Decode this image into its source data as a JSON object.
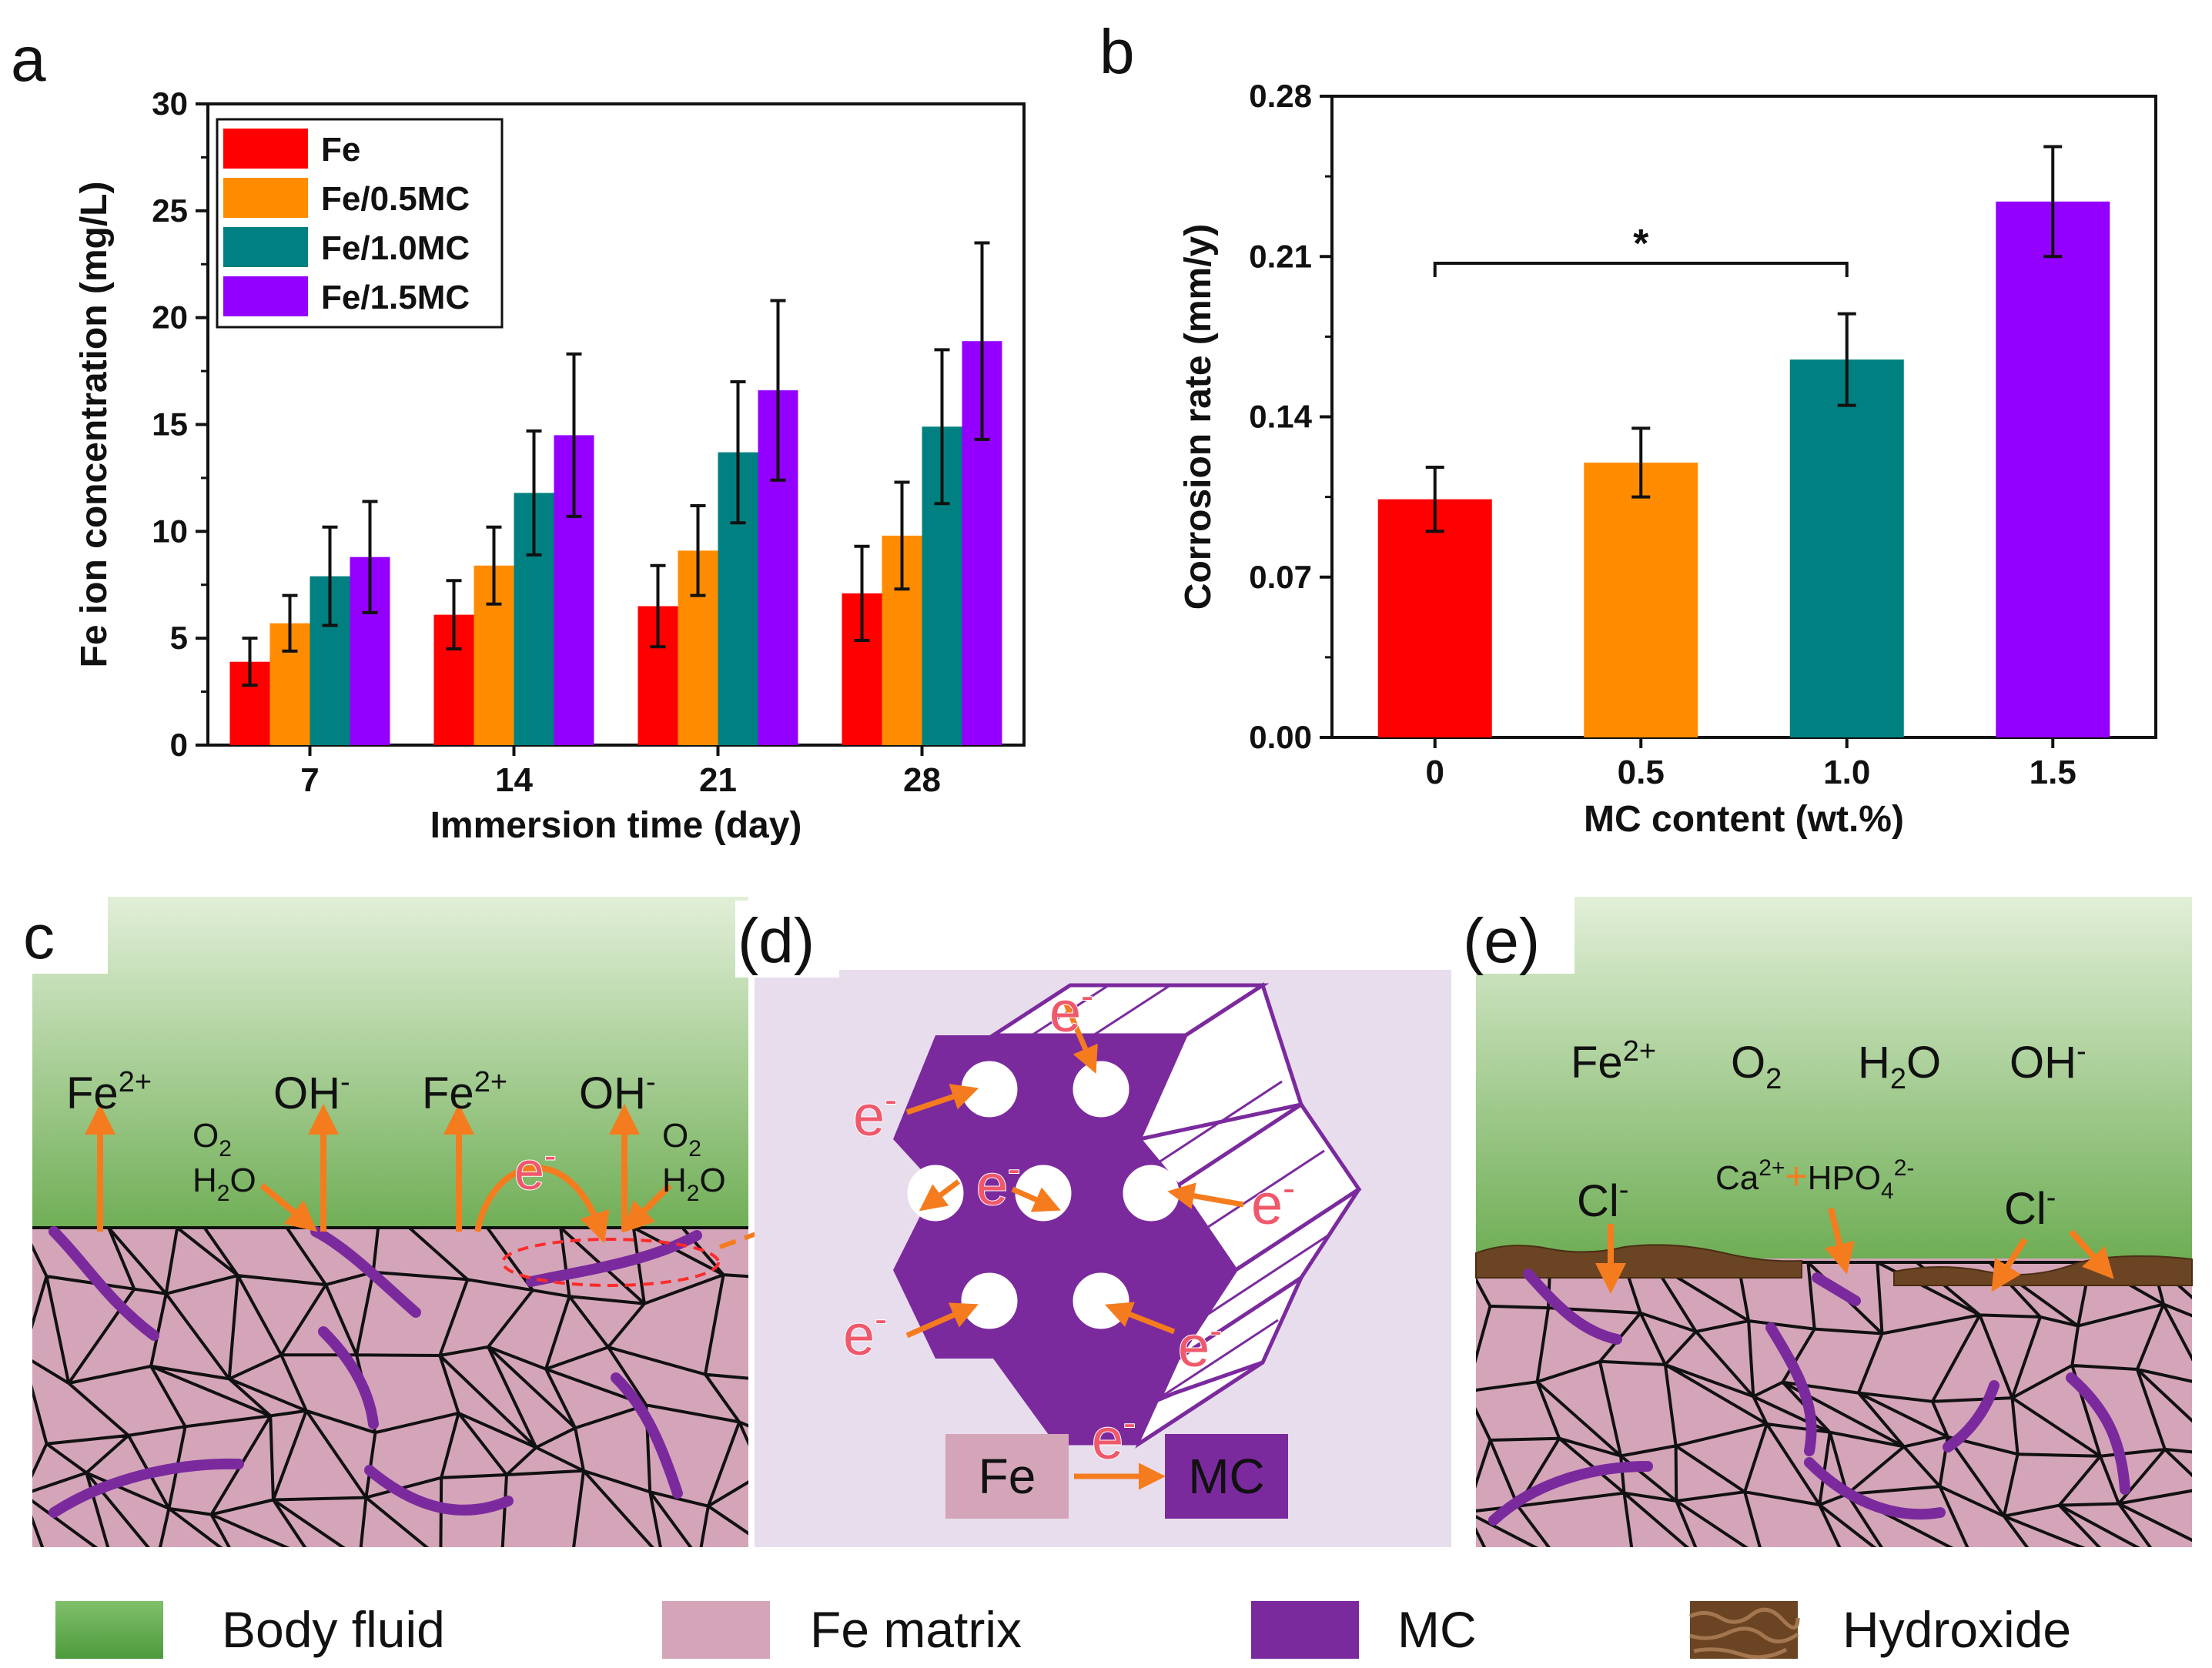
{
  "colors": {
    "fe": "#ff0000",
    "fe05": "#ff8c00",
    "fe10": "#008080",
    "fe15": "#9400ff",
    "arrow": "#f57c1e",
    "mc": "#7b2a9e",
    "matrix": "#d4a5b8",
    "electron": "#f0586b"
  },
  "panel_letters": {
    "a": "a",
    "b": "b",
    "c": "c",
    "d": "(d)",
    "e": "(e)"
  },
  "chart_data": [
    {
      "type": "bar",
      "panel": "a",
      "title": "",
      "xlabel": "Immersion time (day)",
      "ylabel": "Fe ion concentration (mg/L)",
      "categories": [
        "7",
        "14",
        "21",
        "28"
      ],
      "ylim": [
        0,
        30
      ],
      "yticks": [
        "0",
        "5",
        "10",
        "15",
        "20",
        "25",
        "30"
      ],
      "legend_position": "top-left",
      "series": [
        {
          "name": "Fe",
          "color": "#ff0000",
          "values": [
            3.9,
            6.1,
            6.5,
            7.1
          ],
          "errors": [
            1.1,
            1.6,
            1.9,
            2.2
          ]
        },
        {
          "name": "Fe/0.5MC",
          "color": "#ff8c00",
          "values": [
            5.7,
            8.4,
            9.1,
            9.8
          ],
          "errors": [
            1.3,
            1.8,
            2.1,
            2.5
          ]
        },
        {
          "name": "Fe/1.0MC",
          "color": "#008080",
          "values": [
            7.9,
            11.8,
            13.7,
            14.9
          ],
          "errors": [
            2.3,
            2.9,
            3.3,
            3.6
          ]
        },
        {
          "name": "Fe/1.5MC",
          "color": "#9400ff",
          "values": [
            8.8,
            14.5,
            16.6,
            18.9
          ],
          "errors": [
            2.6,
            3.8,
            4.2,
            4.6
          ]
        }
      ]
    },
    {
      "type": "bar",
      "panel": "b",
      "title": "",
      "xlabel": "MC content (wt.%)",
      "ylabel": "Corrosion rate (mm/y)",
      "categories": [
        "0",
        "0.5",
        "1.0",
        "1.5"
      ],
      "colors": [
        "#ff0000",
        "#ff8c00",
        "#008080",
        "#9400ff"
      ],
      "values": [
        0.104,
        0.12,
        0.165,
        0.234
      ],
      "errors": [
        0.014,
        0.015,
        0.02,
        0.024
      ],
      "ylim": [
        0,
        0.28
      ],
      "yticks": [
        "0.00",
        "0.07",
        "0.14",
        "0.21",
        "0.28"
      ],
      "significance": {
        "from": "0",
        "to": "1.0",
        "label": "*"
      }
    }
  ],
  "panel_c": {
    "labels": [
      "Fe",
      "OH",
      "Fe",
      "OH"
    ],
    "superscripts": [
      "2+",
      "-",
      "2+",
      "-"
    ],
    "o2": "O",
    "o2_sub": "2",
    "h2o_h": "H",
    "h2o_sub": "2",
    "h2o_o": "O",
    "electron": "e",
    "electron_sup": "-"
  },
  "panel_d": {
    "electron": "e",
    "electron_sup": "-",
    "fe_label": "Fe",
    "mc_label": "MC"
  },
  "panel_e": {
    "top_species": [
      "Fe",
      "O",
      "H",
      "OH"
    ],
    "top_sup": [
      "2+",
      "",
      "",
      "-"
    ],
    "o2_sub": "2",
    "h2o_sub": "2",
    "h2o_o": "O",
    "cl": "Cl",
    "cl_sup": "-",
    "ca": "Ca",
    "ca_sup": "2+",
    "plus": "+",
    "hpo": "HPO",
    "hpo_sub": "4",
    "hpo_sup": "2-"
  },
  "legend_bottom": [
    "Body fluid",
    "Fe matrix",
    "MC",
    "Hydroxide"
  ]
}
